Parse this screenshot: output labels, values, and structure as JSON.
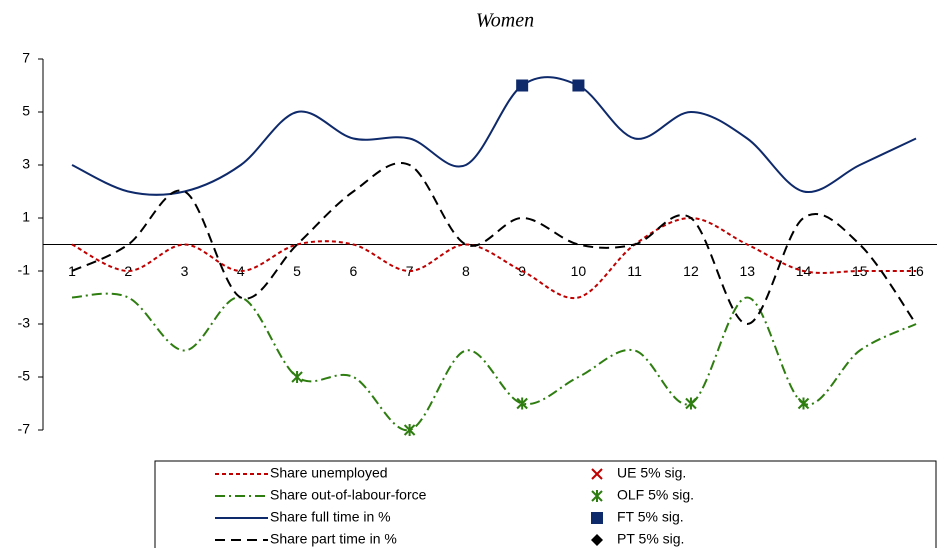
{
  "chart_data": {
    "type": "line",
    "title": "Women",
    "categories": [
      "1",
      "2",
      "3",
      "4",
      "5",
      "6",
      "7",
      "8",
      "9",
      "10",
      "11",
      "12",
      "13",
      "14",
      "15",
      "16"
    ],
    "ylim": [
      -7,
      7
    ],
    "yticks": [
      -7,
      -5,
      -3,
      -1,
      1,
      3,
      5,
      7
    ],
    "series": [
      {
        "name": "Share unemployed",
        "color": "#c00000",
        "dash": "4,3",
        "values": [
          0,
          -1,
          0,
          -1,
          0,
          0,
          -1,
          0,
          -1,
          -2,
          0,
          1,
          0,
          -1,
          -1,
          -1
        ]
      },
      {
        "name": "Share out-of-labour-force",
        "color": "#2e7d10",
        "dash": "10,4,2,4",
        "values": [
          -2,
          -2,
          -4,
          -2,
          -5,
          -5,
          -7,
          -4,
          -6,
          -5,
          -4,
          -6,
          -2,
          -6,
          -4,
          -3
        ]
      },
      {
        "name": "Share full time in %",
        "color": "#0f2a6b",
        "dash": "none",
        "values": [
          3,
          2,
          2,
          3,
          5,
          4,
          4,
          3,
          6,
          6,
          4,
          5,
          4,
          2,
          3,
          4
        ]
      },
      {
        "name": "Share part time in %",
        "color": "#000000",
        "dash": "10,6",
        "values": [
          -1,
          0,
          2,
          -2,
          0,
          2,
          3,
          0,
          1,
          0,
          0,
          1,
          -3,
          1,
          0,
          -3
        ]
      }
    ],
    "markers": [
      {
        "name": "UE 5% sig.",
        "color": "#c00000",
        "marker": "x",
        "values": [
          null,
          null,
          null,
          null,
          null,
          null,
          null,
          null,
          null,
          null,
          null,
          null,
          null,
          null,
          null,
          null
        ]
      },
      {
        "name": "OLF 5% sig.",
        "color": "#2e7d10",
        "marker": "star",
        "values": [
          null,
          null,
          null,
          null,
          -5,
          null,
          -7,
          null,
          -6,
          null,
          null,
          -6,
          null,
          -6,
          null,
          null
        ]
      },
      {
        "name": "FT 5% sig.",
        "color": "#0f2a6b",
        "marker": "square",
        "values": [
          null,
          null,
          null,
          null,
          null,
          null,
          null,
          null,
          6,
          6,
          null,
          null,
          null,
          null,
          null,
          null
        ]
      },
      {
        "name": "PT 5% sig.",
        "color": "#000000",
        "marker": "diamond",
        "values": [
          null,
          null,
          null,
          null,
          null,
          null,
          null,
          null,
          null,
          null,
          null,
          null,
          null,
          null,
          null,
          null
        ]
      }
    ]
  }
}
